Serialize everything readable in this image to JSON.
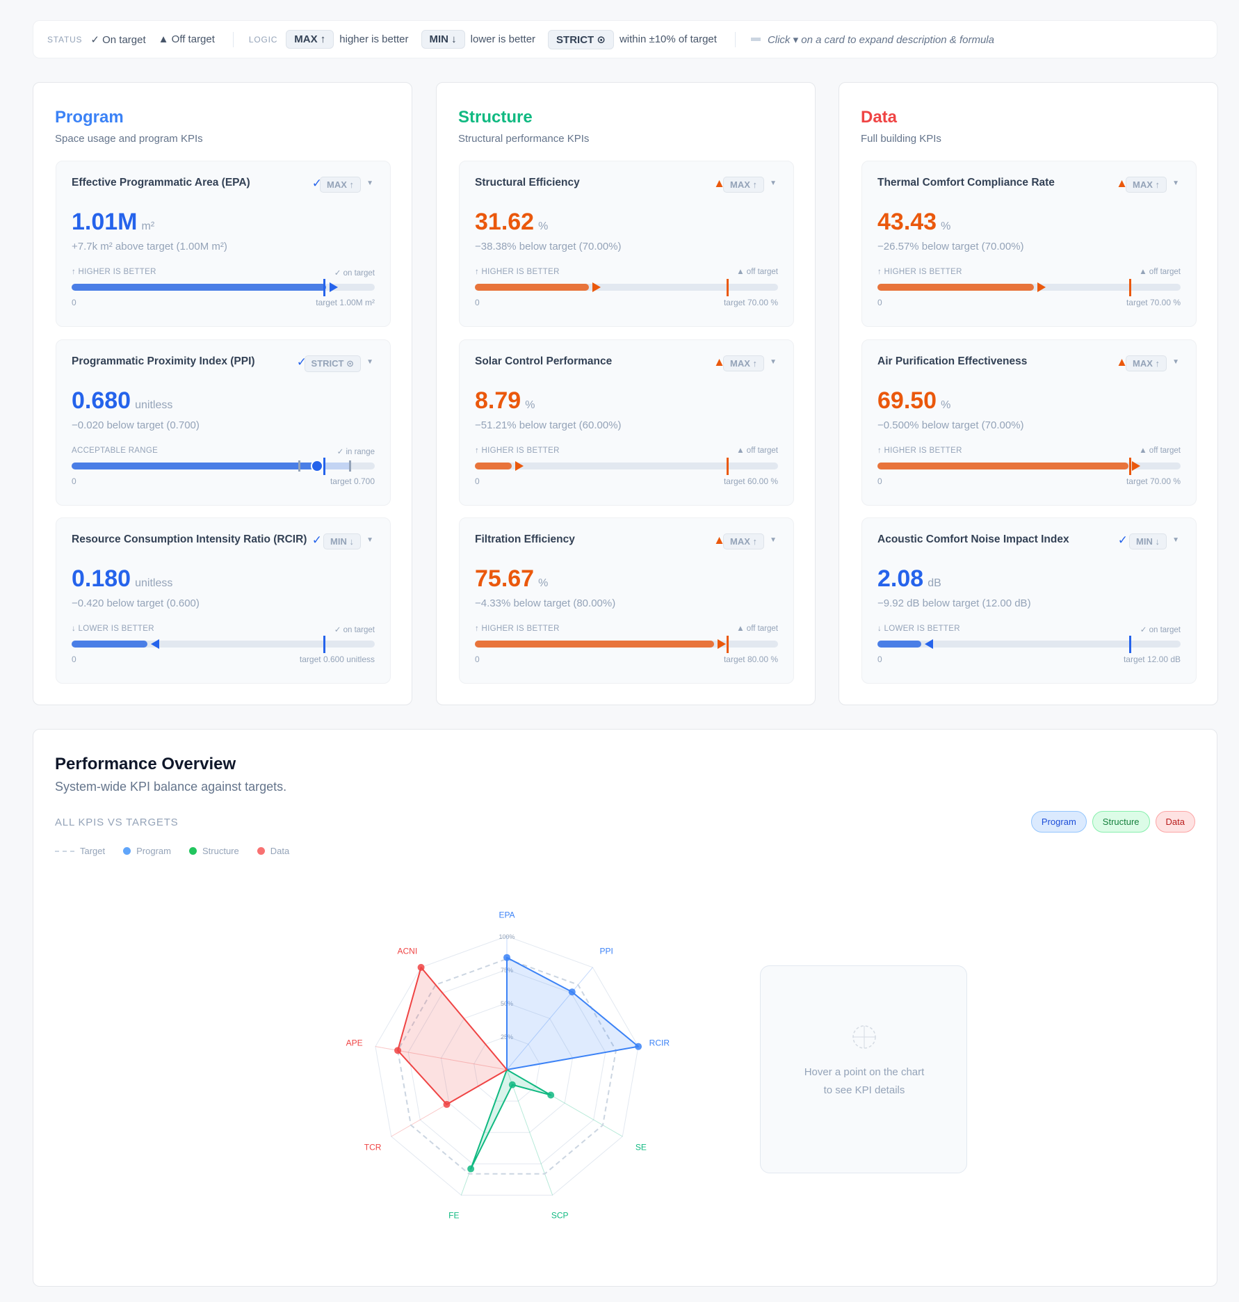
{
  "legend_bar": {
    "status_caption": "STATUS",
    "on_target": "✓ On target",
    "off_target": "▲ Off target",
    "logic_caption": "LOGIC",
    "max_label": "MAX ↑",
    "max_desc": "higher is better",
    "min_label": "MIN ↓",
    "min_desc": "lower is better",
    "strict_label": "STRICT ⊙",
    "strict_desc": "within ±10% of target",
    "hint": "Click ▾ on a card to expand description & formula"
  },
  "colors": {
    "program": "#3b82f6",
    "structure": "#10b981",
    "data": "#ef4444",
    "on": "#2563eb",
    "off": "#ea580c"
  },
  "groups": [
    {
      "title": "Program",
      "subtitle": "Space usage and program KPIs",
      "color": "#3b82f6",
      "cards": [
        {
          "title": "Effective Programmatic Area (EPA)",
          "status": "on",
          "status_icon": "✓",
          "logic": "MAX ↑",
          "mode": "max",
          "value": "1.01M",
          "unit": "m²",
          "delta": "+7.7k m² above target (1.00M m²)",
          "bar_label": "↑ HIGHER IS BETTER",
          "bar_status": "✓ on target",
          "zero": "0",
          "target_label": "target 1.00M m²",
          "value_num": 1.0077,
          "target_num": 1.0
        },
        {
          "title": "Programmatic Proximity Index (PPI)",
          "status": "on",
          "status_icon": "✓",
          "logic": "STRICT ⊙",
          "mode": "strict",
          "value": "0.680",
          "unit": "unitless",
          "delta": "−0.020 below target (0.700)",
          "bar_label": "ACCEPTABLE RANGE",
          "bar_status": "✓ in range",
          "zero": "0",
          "target_label": "target 0.700",
          "value_num": 0.68,
          "target_num": 0.7
        },
        {
          "title": "Resource Consumption Intensity Ratio (RCIR)",
          "status": "on",
          "status_icon": "✓",
          "logic": "MIN ↓",
          "mode": "min",
          "value": "0.180",
          "unit": "unitless",
          "delta": "−0.420 below target (0.600)",
          "bar_label": "↓ LOWER IS BETTER",
          "bar_status": "✓ on target",
          "zero": "0",
          "target_label": "target 0.600 unitless",
          "value_num": 0.18,
          "target_num": 0.6
        }
      ]
    },
    {
      "title": "Structure",
      "subtitle": "Structural performance KPIs",
      "color": "#10b981",
      "cards": [
        {
          "title": "Structural Efficiency",
          "status": "off",
          "status_icon": "▲",
          "logic": "MAX ↑",
          "mode": "max",
          "value": "31.62",
          "unit": "%",
          "delta": "−38.38% below target (70.00%)",
          "bar_label": "↑ HIGHER IS BETTER",
          "bar_status": "▲ off target",
          "zero": "0",
          "target_label": "target 70.00 %",
          "value_num": 31.62,
          "target_num": 70
        },
        {
          "title": "Solar Control Performance",
          "status": "off",
          "status_icon": "▲",
          "logic": "MAX ↑",
          "mode": "max",
          "value": "8.79",
          "unit": "%",
          "delta": "−51.21% below target (60.00%)",
          "bar_label": "↑ HIGHER IS BETTER",
          "bar_status": "▲ off target",
          "zero": "0",
          "target_label": "target 60.00 %",
          "value_num": 8.79,
          "target_num": 60
        },
        {
          "title": "Filtration Efficiency",
          "status": "off",
          "status_icon": "▲",
          "logic": "MAX ↑",
          "mode": "max",
          "value": "75.67",
          "unit": "%",
          "delta": "−4.33% below target (80.00%)",
          "bar_label": "↑ HIGHER IS BETTER",
          "bar_status": "▲ off target",
          "zero": "0",
          "target_label": "target 80.00 %",
          "value_num": 75.67,
          "target_num": 80
        }
      ]
    },
    {
      "title": "Data",
      "subtitle": "Full building KPIs",
      "color": "#ef4444",
      "cards": [
        {
          "title": "Thermal Comfort Compliance Rate",
          "status": "off",
          "status_icon": "▲",
          "logic": "MAX ↑",
          "mode": "max",
          "value": "43.43",
          "unit": "%",
          "delta": "−26.57% below target (70.00%)",
          "bar_label": "↑ HIGHER IS BETTER",
          "bar_status": "▲ off target",
          "zero": "0",
          "target_label": "target 70.00 %",
          "value_num": 43.43,
          "target_num": 70
        },
        {
          "title": "Air Purification Effectiveness",
          "status": "off",
          "status_icon": "▲",
          "logic": "MAX ↑",
          "mode": "max",
          "value": "69.50",
          "unit": "%",
          "delta": "−0.500% below target (70.00%)",
          "bar_label": "↑ HIGHER IS BETTER",
          "bar_status": "▲ off target",
          "zero": "0",
          "target_label": "target 70.00 %",
          "value_num": 69.5,
          "target_num": 70
        },
        {
          "title": "Acoustic Comfort Noise Impact Index",
          "status": "on",
          "status_icon": "✓",
          "logic": "MIN ↓",
          "mode": "min",
          "value": "2.08",
          "unit": "dB",
          "delta": "−9.92 dB below target (12.00 dB)",
          "bar_label": "↓ LOWER IS BETTER",
          "bar_status": "✓ on target",
          "zero": "0",
          "target_label": "target 12.00 dB",
          "value_num": 2.08,
          "target_num": 12
        }
      ]
    }
  ],
  "overview": {
    "title": "Performance Overview",
    "subtitle": "System-wide KPI balance against targets.",
    "caption": "ALL KPIS VS TARGETS",
    "legend": [
      "Target",
      "Program",
      "Structure",
      "Data"
    ],
    "filters": [
      "Program",
      "Structure",
      "Data"
    ],
    "hover_text": "Hover a point on the chart to see KPI details"
  },
  "chart_data": {
    "type": "radar",
    "axes": [
      "EPA",
      "PPI",
      "RCIR",
      "SE",
      "SCP",
      "FE",
      "TCR",
      "APE",
      "ACNI"
    ],
    "axis_groups": [
      "Program",
      "Program",
      "Program",
      "Structure",
      "Structure",
      "Structure",
      "Data",
      "Data",
      "Data"
    ],
    "ring_labels": [
      "25%",
      "50%",
      "75%",
      "100%"
    ],
    "range": [
      0,
      100
    ],
    "target": 83,
    "series": [
      {
        "name": "Program",
        "color": "#3b82f6",
        "values": {
          "EPA": 84,
          "PPI": 76,
          "RCIR": 100
        }
      },
      {
        "name": "Structure",
        "color": "#10b981",
        "values": {
          "SE": 38,
          "SCP": 12,
          "FE": 79
        }
      },
      {
        "name": "Data",
        "color": "#ef4444",
        "values": {
          "TCR": 52,
          "APE": 83,
          "ACNI": 100
        }
      }
    ]
  }
}
